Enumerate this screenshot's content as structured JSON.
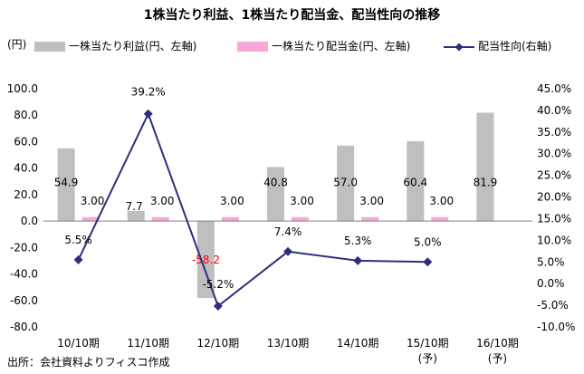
{
  "chart_data": {
    "type": "bar",
    "title": "1株当たり利益、1株当たり配当金、配当性向の推移",
    "y_unit_label": "(円)",
    "categories": [
      "10/10期",
      "11/10期",
      "12/10期",
      "13/10期",
      "14/10期",
      "15/10期",
      "16/10期"
    ],
    "category_suffix": [
      "",
      "",
      "",
      "",
      "",
      "(予)",
      "(予)"
    ],
    "series": [
      {
        "name": "一株当たり利益(円、左軸)",
        "kind": "bar",
        "axis": "left",
        "color": "#bfbfbf",
        "values": [
          54.9,
          7.7,
          -58.2,
          40.8,
          57.0,
          60.4,
          81.9
        ],
        "labels": [
          "54.9",
          "7.7",
          "-58.2",
          "40.8",
          "57.0",
          "60.4",
          "81.9"
        ]
      },
      {
        "name": "一株当たり配当金(円、左軸)",
        "kind": "bar",
        "axis": "left",
        "color": "#f7a7d8",
        "values": [
          3.0,
          3.0,
          3.0,
          3.0,
          3.0,
          3.0,
          null
        ],
        "labels": [
          "3.00",
          "3.00",
          "3.00",
          "3.00",
          "3.00",
          "3.00",
          ""
        ]
      },
      {
        "name": "配当性向(右軸)",
        "kind": "line",
        "axis": "right",
        "color": "#2e2e7e",
        "values": [
          5.5,
          39.2,
          -5.2,
          7.4,
          5.3,
          5.0,
          null
        ],
        "labels": [
          "5.5%",
          "39.2%",
          "-5.2%",
          "7.4%",
          "5.3%",
          "5.0%",
          ""
        ]
      }
    ],
    "left_axis": {
      "min": -80,
      "max": 100,
      "step": 20,
      "tick_labels": [
        "100.0",
        "80.0",
        "60.0",
        "40.0",
        "20.0",
        "0.0",
        "-20.0",
        "-40.0",
        "-60.0",
        "-80.0"
      ]
    },
    "right_axis": {
      "min": -10,
      "max": 45,
      "step": 5,
      "tick_labels": [
        "45.0%",
        "40.0%",
        "35.0%",
        "30.0%",
        "25.0%",
        "20.0%",
        "15.0%",
        "10.0%",
        "5.0%",
        "0.0%",
        "-5.0%",
        "-10.0%"
      ]
    },
    "negative_label_color": "#ff0000",
    "grid": false,
    "legend_position": "top"
  },
  "source": "出所：会社資料よりフィスコ作成"
}
